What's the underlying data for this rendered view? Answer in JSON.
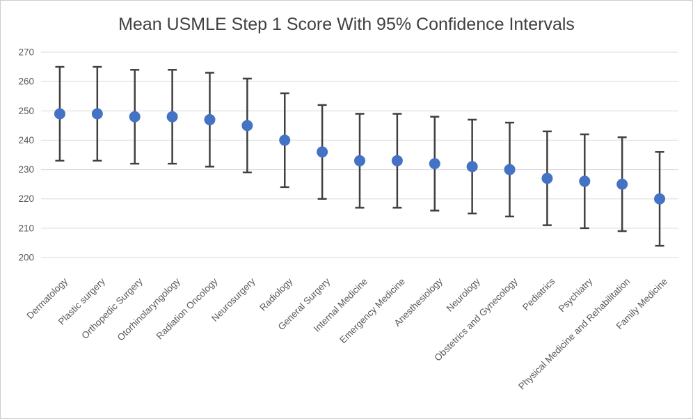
{
  "window": {
    "background_color": "#ffffff",
    "border_color": "#cccccc"
  },
  "chart_data": {
    "type": "scatter",
    "subtype": "mean-with-error-bars",
    "title": "Mean USMLE Step 1 Score With 95% Confidence Intervals",
    "xlabel": "",
    "ylabel": "",
    "ylim": [
      200,
      270
    ],
    "yticks": [
      200,
      210,
      220,
      230,
      240,
      250,
      260,
      270
    ],
    "grid": true,
    "legend_position": "none",
    "categories": [
      "Dermatology",
      "Plastic surgery",
      "Orthopedic Surgery",
      "Otorhinolaryngology",
      "Radiation Oncology",
      "Neurosurgery",
      "Radiology",
      "General Surgery",
      "Internal Medicine",
      "Emergency Medicine",
      "Anesthesiology",
      "Neurology",
      "Obstetrics and Gynecology",
      "Pediatrics",
      "Psychiatry",
      "Physical Medicine and Rehabilitation",
      "Family Medicine"
    ],
    "series": [
      {
        "name": "Mean USMLE Step 1 Score",
        "values": [
          249,
          249,
          248,
          248,
          247,
          245,
          240,
          236,
          233,
          233,
          232,
          231,
          230,
          227,
          226,
          225,
          220
        ],
        "ci_low": [
          233,
          233,
          232,
          232,
          231,
          229,
          224,
          220,
          217,
          217,
          216,
          215,
          214,
          211,
          210,
          209,
          204
        ],
        "ci_high": [
          265,
          265,
          264,
          264,
          263,
          261,
          256,
          252,
          249,
          249,
          248,
          247,
          246,
          243,
          242,
          241,
          236
        ]
      }
    ],
    "colors": {
      "marker": "#4472C4",
      "error_bar": "#404040",
      "gridline": "#D9D9D9",
      "axis_text": "#595959",
      "title_text": "#404040"
    }
  }
}
